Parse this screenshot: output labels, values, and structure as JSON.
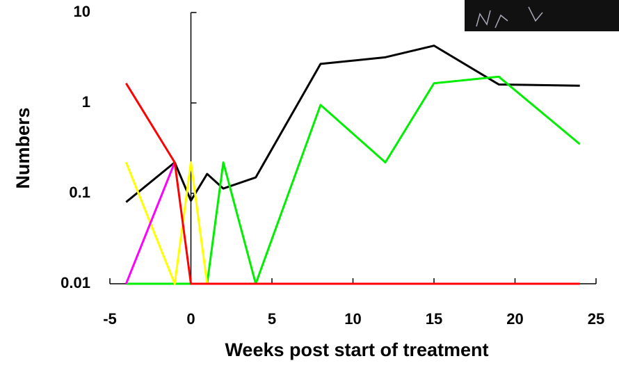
{
  "chart_data": {
    "type": "line",
    "xlabel": "Weeks post start of treatment",
    "ylabel": "Numbers",
    "log_y": true,
    "xlim": [
      -5,
      25
    ],
    "xticks": [
      -5,
      0,
      5,
      10,
      15,
      20,
      25
    ],
    "ylim": [
      0.01,
      10
    ],
    "yticks": [
      0.01,
      0.1,
      1,
      10
    ],
    "series": [
      {
        "color": "#000000",
        "x": [
          -4,
          -1,
          0,
          1,
          2,
          4,
          8,
          12,
          15,
          19,
          24
        ],
        "values": [
          0.08,
          0.22,
          0.083,
          0.164,
          0.113,
          0.15,
          2.7,
          3.2,
          4.3,
          1.6,
          1.55
        ]
      },
      {
        "color": "#00ee00",
        "x": [
          -4,
          1,
          2,
          4,
          8,
          12,
          15,
          19,
          24
        ],
        "values": [
          0.01,
          0.01,
          0.22,
          0.01,
          0.95,
          0.22,
          1.65,
          1.95,
          0.35
        ]
      },
      {
        "color": "#ffff00",
        "x": [
          -4,
          -1,
          0,
          1
        ],
        "values": [
          0.22,
          0.01,
          0.22,
          0.01
        ]
      },
      {
        "color": "#ff00ff",
        "x": [
          -4,
          -1
        ],
        "values": [
          0.01,
          0.22
        ]
      },
      {
        "color": "#ff0000",
        "x": [
          -4,
          -1,
          0,
          24
        ],
        "values": [
          1.65,
          0.22,
          0.01,
          0.01
        ]
      }
    ]
  }
}
